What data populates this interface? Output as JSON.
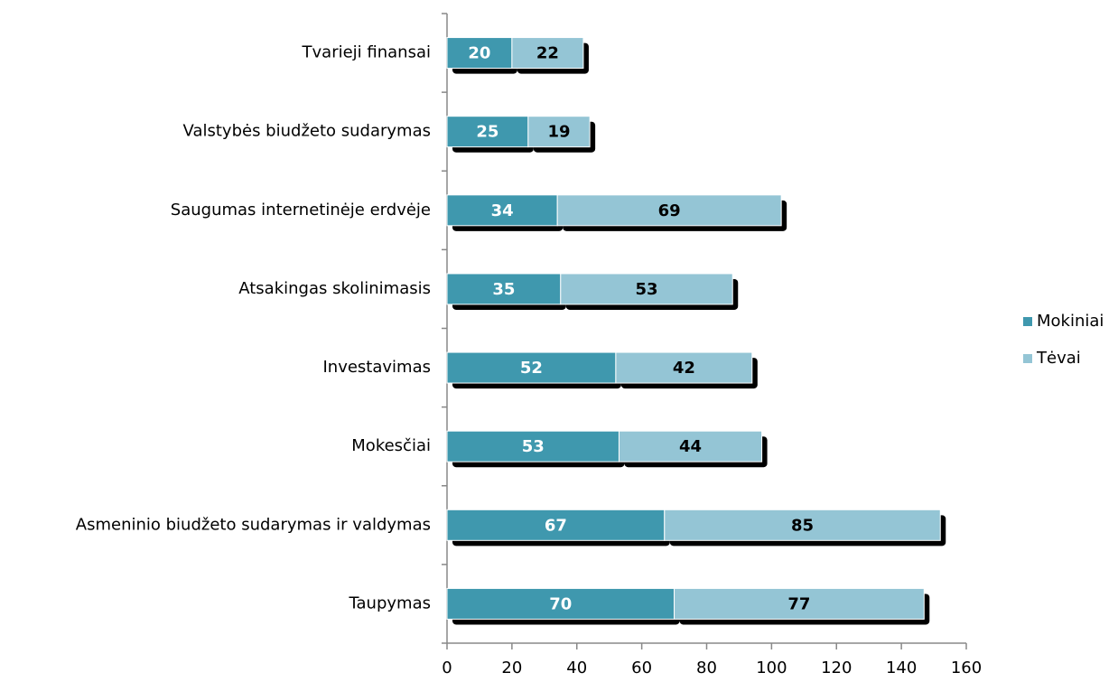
{
  "chart_data": {
    "type": "stacked-bar-horizontal",
    "categories": [
      "Tvarieji finansai",
      "Valstybės biudžeto sudarymas",
      "Saugumas internetinėje erdvėje",
      "Atsakingas skolinimasis",
      "Investavimas",
      "Mokesčiai",
      "Asmeninio biudžeto sudarymas ir valdymas",
      "Taupymas"
    ],
    "series": [
      {
        "name": "Mokiniai",
        "color": "#3f98ae",
        "values": [
          20,
          25,
          34,
          35,
          52,
          53,
          67,
          70
        ]
      },
      {
        "name": "Tėvai",
        "color": "#94c5d5",
        "values": [
          22,
          19,
          69,
          53,
          42,
          44,
          85,
          77
        ]
      }
    ],
    "xlim": [
      0,
      160
    ],
    "xticks": [
      0,
      20,
      40,
      60,
      80,
      100,
      120,
      140,
      160
    ],
    "legend": "right"
  }
}
